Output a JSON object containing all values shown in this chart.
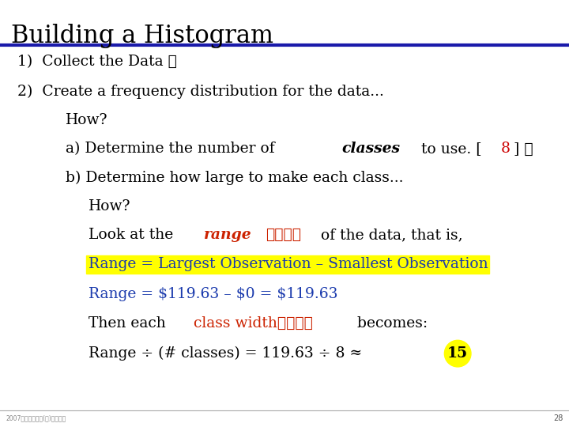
{
  "title": "Building a Histogram",
  "bg_color": "#ffffff",
  "title_color": "#000000",
  "title_fontsize": 22,
  "line_color": "#1a1aaa",
  "body_fontsize": 13.5,
  "footer_text": "2007年統計學概論(一)統計概念",
  "page_number": "28",
  "blue_color": "#1a3aad",
  "red_color": "#cc2200",
  "dark_red": "#cc0000"
}
